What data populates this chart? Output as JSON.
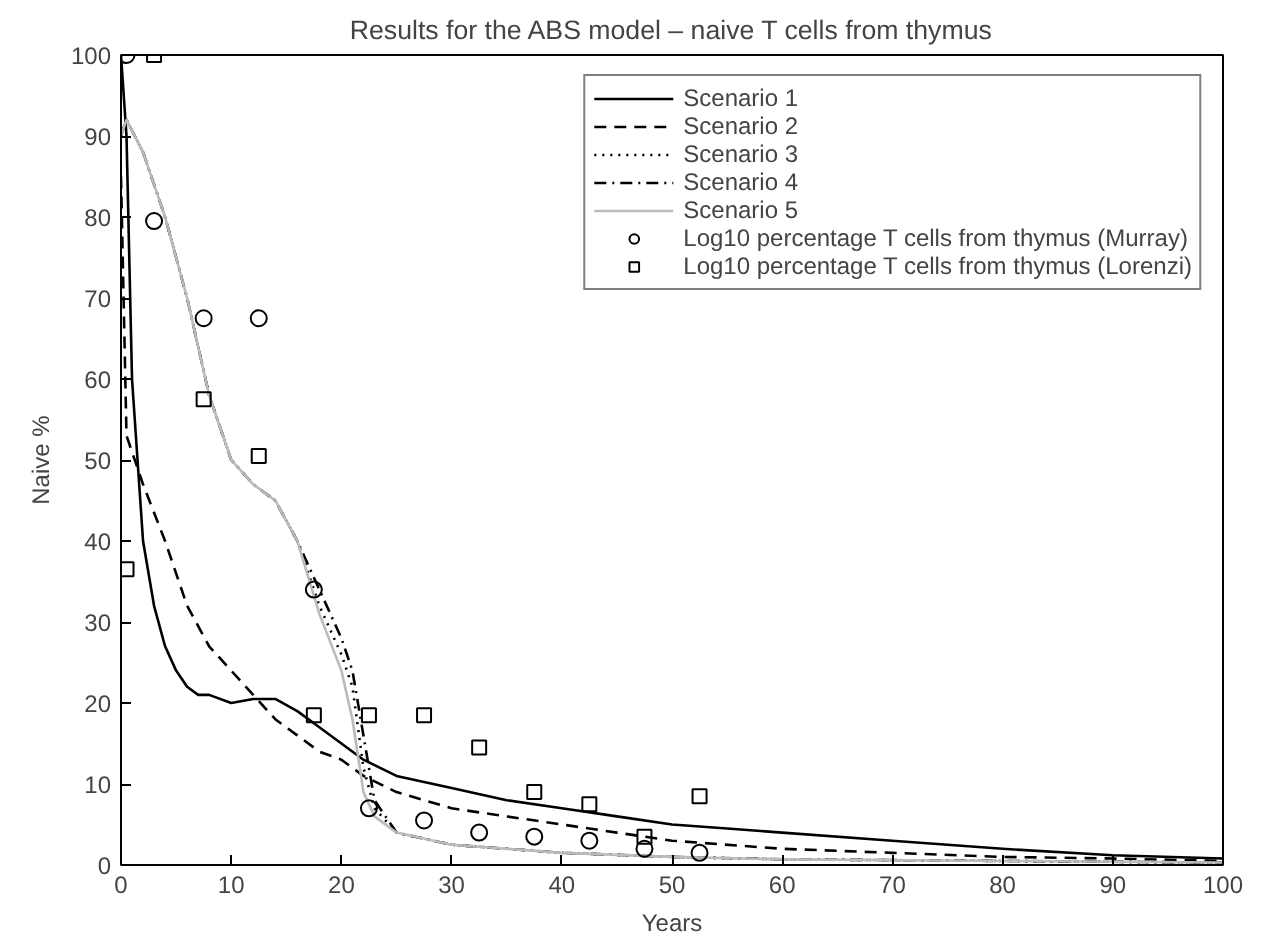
{
  "chart_data": {
    "type": "line",
    "title": "Results for the ABS model – naive T cells from thymus",
    "xlabel": "Years",
    "ylabel": "Naive %",
    "xlim": [
      0,
      100
    ],
    "ylim": [
      0,
      100
    ],
    "xticks": [
      0,
      10,
      20,
      30,
      40,
      50,
      60,
      70,
      80,
      90,
      100
    ],
    "yticks": [
      0,
      10,
      20,
      30,
      40,
      50,
      60,
      70,
      80,
      90,
      100
    ],
    "grid": false,
    "legend": "top right",
    "series": [
      {
        "name": "Scenario 1",
        "color": "#000000",
        "line_style": "solid",
        "x": [
          0,
          0.5,
          1,
          2,
          3,
          4,
          5,
          6,
          7,
          8,
          10,
          12,
          14,
          16,
          18,
          20,
          22,
          25,
          30,
          35,
          40,
          45,
          50,
          55,
          60,
          70,
          80,
          90,
          100
        ],
        "values": [
          100,
          90,
          60,
          40,
          32,
          27,
          24,
          22,
          21,
          21,
          20,
          20.5,
          20.5,
          19,
          17,
          15,
          13,
          11,
          9.5,
          8,
          7,
          6,
          5,
          4.5,
          4,
          3,
          2,
          1.2,
          0.8
        ]
      },
      {
        "name": "Scenario 2",
        "color": "#000000",
        "line_style": "dashed",
        "x": [
          0,
          0.5,
          2,
          4,
          6,
          8,
          10,
          12,
          14,
          16,
          18,
          20,
          22,
          25,
          30,
          35,
          40,
          45,
          50,
          60,
          70,
          80,
          90,
          100
        ],
        "values": [
          85,
          53,
          47,
          40,
          32,
          27,
          24,
          21,
          18,
          16,
          14,
          13,
          11,
          9,
          7,
          6,
          5,
          4,
          3,
          2,
          1.5,
          1,
          0.8,
          0.5
        ]
      },
      {
        "name": "Scenario 3",
        "color": "#000000",
        "line_style": "dotted",
        "x": [
          0,
          0.5,
          2,
          4,
          6,
          8,
          10,
          12,
          14,
          16,
          18,
          20,
          21,
          22,
          23,
          25,
          30,
          35,
          40,
          50,
          60,
          80,
          100
        ],
        "values": [
          90,
          92,
          88,
          80,
          70,
          58,
          50,
          47,
          45,
          40,
          32,
          26,
          22,
          12,
          7,
          4,
          2.5,
          2,
          1.5,
          1,
          0.7,
          0.5,
          0.3
        ]
      },
      {
        "name": "Scenario 4",
        "color": "#000000",
        "line_style": "dashdot",
        "x": [
          0,
          0.5,
          2,
          4,
          6,
          8,
          10,
          12,
          14,
          16,
          18,
          20,
          21,
          22,
          23,
          25,
          30,
          35,
          40,
          50,
          60,
          80,
          100
        ],
        "values": [
          90,
          92,
          88,
          80,
          70,
          58,
          50,
          47,
          45,
          40,
          34,
          28,
          24,
          16,
          8,
          4,
          2.5,
          2,
          1.5,
          1,
          0.7,
          0.5,
          0.3
        ]
      },
      {
        "name": "Scenario 5",
        "color": "#bbbbbb",
        "line_style": "solid",
        "x": [
          0,
          0.5,
          2,
          4,
          6,
          8,
          10,
          12,
          14,
          16,
          18,
          20,
          21,
          22,
          23,
          25,
          30,
          35,
          40,
          50,
          60,
          80,
          100
        ],
        "values": [
          90,
          92,
          88,
          80,
          70,
          58,
          50,
          47,
          45,
          40,
          31,
          24,
          18,
          9,
          6,
          4,
          2.5,
          2,
          1.5,
          1,
          0.7,
          0.5,
          0.3
        ]
      },
      {
        "name": "Log10 percentage T cells from thymus (Murray)",
        "type": "scatter",
        "marker": "circle",
        "color": "#000000",
        "x": [
          0.5,
          3,
          7.5,
          12.5,
          17.5,
          22.5,
          27.5,
          32.5,
          37.5,
          42.5,
          47.5,
          52.5
        ],
        "values": [
          100,
          79.5,
          67.5,
          67.5,
          34,
          7,
          5.5,
          4,
          3.5,
          3,
          2,
          1.5
        ]
      },
      {
        "name": "Log10 percentage T cells from thymus (Lorenzi)",
        "type": "scatter",
        "marker": "square",
        "color": "#000000",
        "x": [
          0.5,
          3,
          7.5,
          12.5,
          17.5,
          22.5,
          27.5,
          32.5,
          37.5,
          42.5,
          47.5,
          52.5
        ],
        "values": [
          36.5,
          100,
          57.5,
          50.5,
          18.5,
          18.5,
          18.5,
          14.5,
          9,
          7.5,
          3.5,
          8.5
        ]
      }
    ]
  }
}
